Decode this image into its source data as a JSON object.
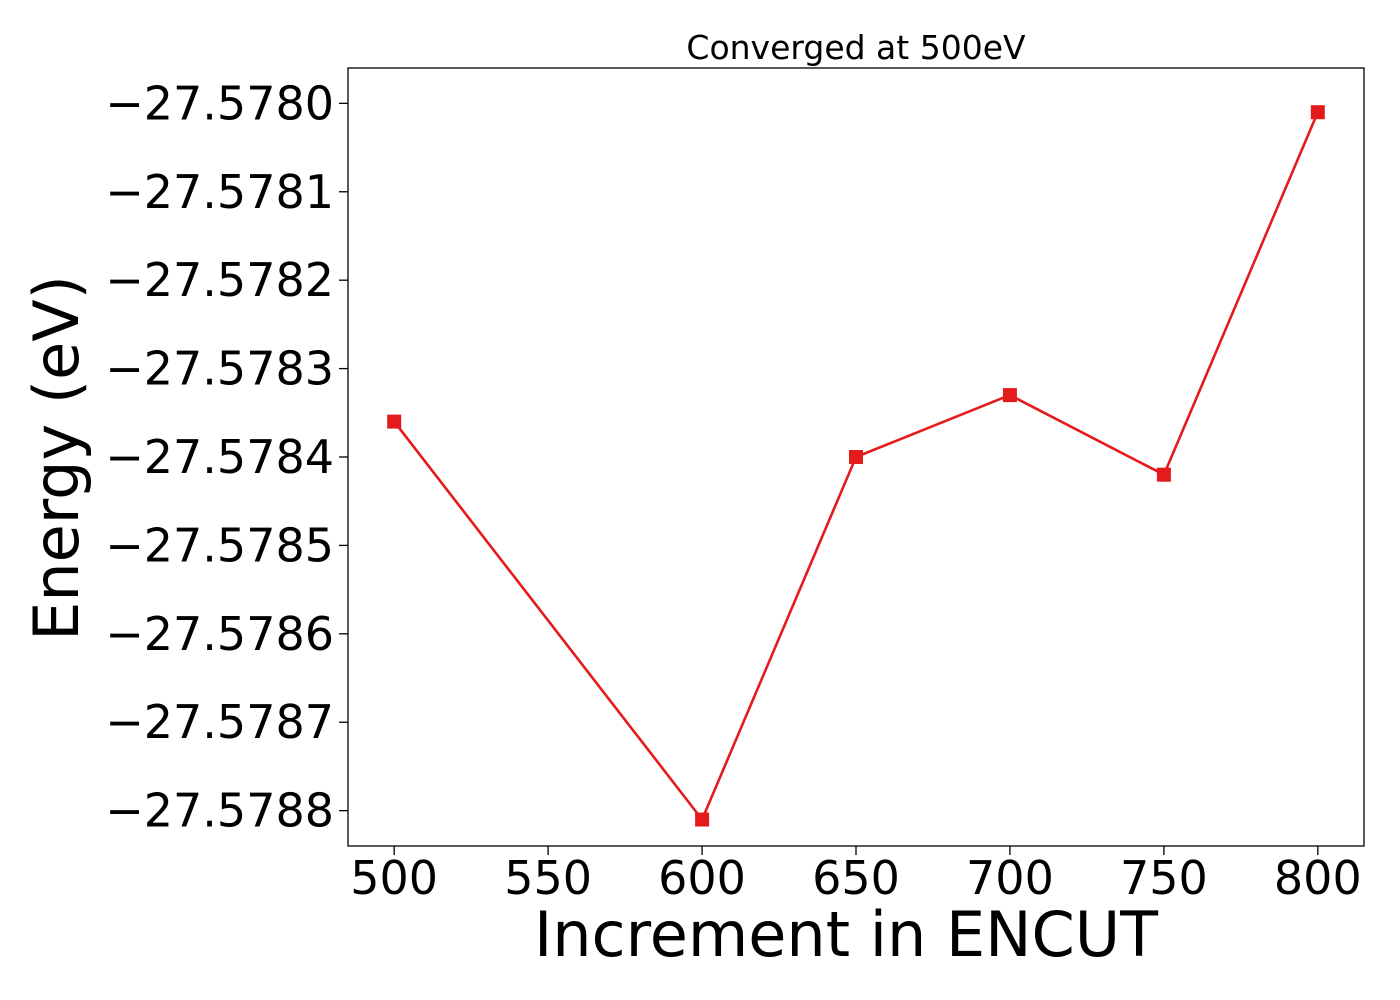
{
  "chart_data": {
    "type": "line",
    "title": "Converged at 500eV",
    "xlabel": "Increment in ENCUT",
    "ylabel": "Energy (eV)",
    "x": [
      500,
      600,
      650,
      700,
      750,
      800
    ],
    "series": [
      {
        "values": [
          -27.57836,
          -27.57881,
          -27.5784,
          -27.57833,
          -27.57842,
          -27.57801
        ],
        "color": "#e41a1c",
        "marker": "square"
      }
    ],
    "xticks": [
      500,
      550,
      600,
      650,
      700,
      750,
      800
    ],
    "xtick_labels": [
      "500",
      "550",
      "600",
      "650",
      "700",
      "750",
      "800"
    ],
    "yticks": [
      -27.578,
      -27.5781,
      -27.5782,
      -27.5783,
      -27.5784,
      -27.5785,
      -27.5786,
      -27.5787,
      -27.5788
    ],
    "ytick_labels": [
      "−27.5780",
      "−27.5781",
      "−27.5782",
      "−27.5783",
      "−27.5784",
      "−27.5785",
      "−27.5786",
      "−27.5787",
      "−27.5788"
    ],
    "xlim": [
      485,
      815
    ],
    "ylim": [
      -27.57884,
      -27.57796
    ],
    "grid": false,
    "legend": "none"
  }
}
